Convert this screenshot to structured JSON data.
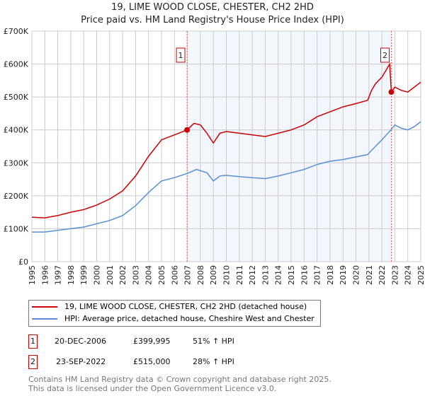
{
  "chart_data": {
    "type": "line",
    "title": "19, LIME WOOD CLOSE, CHESTER, CH2 2HD",
    "subtitle": "Price paid vs. HM Land Registry's House Price Index (HPI)",
    "xlim": [
      1995,
      2025
    ],
    "ylim": [
      0,
      700000
    ],
    "y_ticks": [
      {
        "v": 0,
        "label": "£0"
      },
      {
        "v": 100000,
        "label": "£100K"
      },
      {
        "v": 200000,
        "label": "£200K"
      },
      {
        "v": 300000,
        "label": "£300K"
      },
      {
        "v": 400000,
        "label": "£400K"
      },
      {
        "v": 500000,
        "label": "£500K"
      },
      {
        "v": 600000,
        "label": "£600K"
      },
      {
        "v": 700000,
        "label": "£700K"
      }
    ],
    "x_ticks": [
      "1995",
      "1996",
      "1997",
      "1998",
      "1999",
      "2000",
      "2001",
      "2002",
      "2003",
      "2004",
      "2005",
      "2006",
      "2007",
      "2008",
      "2009",
      "2010",
      "2011",
      "2012",
      "2013",
      "2014",
      "2015",
      "2016",
      "2017",
      "2018",
      "2019",
      "2020",
      "2021",
      "2022",
      "2023",
      "2024",
      "2025"
    ],
    "grid": true,
    "series": [
      {
        "name": "19, LIME WOOD CLOSE, CHESTER, CH2 2HD (detached house)",
        "color": "#cc0000",
        "x": [
          1995,
          1996,
          1997,
          1998,
          1999,
          2000,
          2001,
          2002,
          2003,
          2004,
          2005,
          2006,
          2006.97,
          2007.5,
          2008,
          2008.5,
          2009,
          2009.5,
          2010,
          2011,
          2012,
          2013,
          2014,
          2015,
          2016,
          2017,
          2018,
          2019,
          2020,
          2020.9,
          2021.2,
          2021.5,
          2022,
          2022.6,
          2022.73,
          2023,
          2023.5,
          2024,
          2024.5,
          2025
        ],
        "y": [
          135000,
          133000,
          140000,
          150000,
          158000,
          172000,
          190000,
          215000,
          260000,
          320000,
          370000,
          385000,
          399995,
          420000,
          415000,
          390000,
          360000,
          390000,
          395000,
          390000,
          385000,
          380000,
          390000,
          400000,
          415000,
          440000,
          455000,
          470000,
          480000,
          490000,
          520000,
          540000,
          560000,
          600000,
          515000,
          530000,
          520000,
          515000,
          530000,
          545000
        ]
      },
      {
        "name": "HPI: Average price, detached house, Cheshire West and Chester",
        "color": "#5b8fd4",
        "x": [
          1995,
          1996,
          1997,
          1998,
          1999,
          2000,
          2001,
          2002,
          2003,
          2004,
          2005,
          2006,
          2007,
          2007.7,
          2008.5,
          2009,
          2009.5,
          2010,
          2011,
          2012,
          2013,
          2014,
          2015,
          2016,
          2017,
          2018,
          2019,
          2020,
          2020.9,
          2021.5,
          2022,
          2022.7,
          2023,
          2023.5,
          2024,
          2024.5,
          2025
        ],
        "y": [
          90000,
          90000,
          95000,
          100000,
          105000,
          115000,
          125000,
          140000,
          170000,
          210000,
          245000,
          255000,
          268000,
          280000,
          270000,
          245000,
          260000,
          262000,
          258000,
          255000,
          252000,
          260000,
          270000,
          280000,
          295000,
          305000,
          310000,
          318000,
          325000,
          350000,
          370000,
          400000,
          415000,
          405000,
          400000,
          410000,
          425000
        ]
      }
    ],
    "annotations": [
      {
        "label": "1",
        "x": 2006.97,
        "y": 399995
      },
      {
        "label": "2",
        "x": 2022.73,
        "y": 515000
      }
    ],
    "shaded_range": [
      2006.97,
      2022.73
    ],
    "legend_position": "bottom"
  },
  "transactions": [
    {
      "num": "1",
      "date": "20-DEC-2006",
      "price": "£399,995",
      "hpi": "51% ↑ HPI"
    },
    {
      "num": "2",
      "date": "23-SEP-2022",
      "price": "£515,000",
      "hpi": "28% ↑ HPI"
    }
  ],
  "footer": [
    "Contains HM Land Registry data © Crown copyright and database right 2025.",
    "This data is licensed under the Open Government Licence v3.0."
  ]
}
